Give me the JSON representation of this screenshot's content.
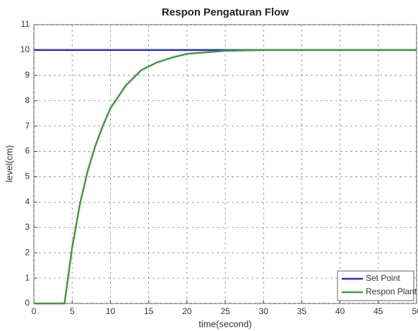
{
  "chart_data": {
    "type": "line",
    "title": "Respon Pengaturan Flow",
    "x_label": "time(second)",
    "y_label": "level(cm)",
    "x": [
      0,
      4,
      5,
      6,
      7,
      8,
      9,
      10,
      12,
      14,
      16,
      18,
      20,
      25,
      30,
      40,
      50
    ],
    "series": [
      {
        "name": "Set Point",
        "color": "#2b2bbf",
        "values": [
          10,
          10,
          10,
          10,
          10,
          10,
          10,
          10,
          10,
          10,
          10,
          10,
          10,
          10,
          10,
          10,
          10
        ]
      },
      {
        "name": "Respon Plant",
        "color": "#3f9a3f",
        "values": [
          0,
          0,
          2.2,
          3.9,
          5.2,
          6.2,
          7.0,
          7.7,
          8.6,
          9.2,
          9.5,
          9.7,
          9.85,
          9.97,
          10,
          10,
          10
        ]
      }
    ],
    "xlim": [
      0,
      50
    ],
    "ylim": [
      0,
      11
    ],
    "xticks": [
      0,
      5,
      10,
      15,
      20,
      25,
      30,
      35,
      40,
      45,
      50
    ],
    "yticks": [
      0,
      1,
      2,
      3,
      4,
      5,
      6,
      7,
      8,
      9,
      10,
      11
    ],
    "grid": true,
    "legend": "lower right"
  }
}
